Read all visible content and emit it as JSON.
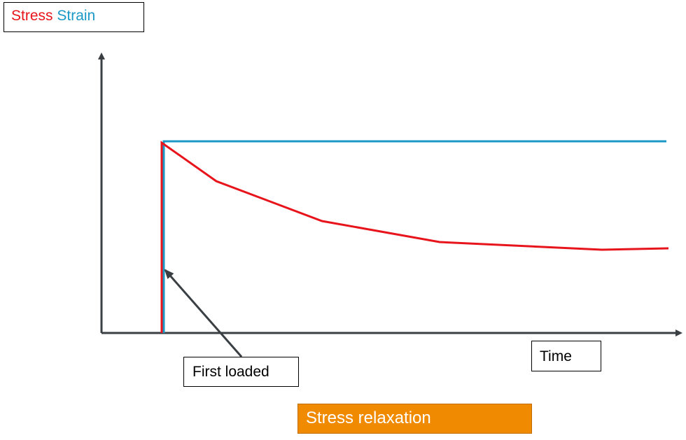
{
  "legend": {
    "stress_label": "Stress",
    "strain_label": "Strain"
  },
  "annotations": {
    "time_label": "Time",
    "first_loaded_label": "First loaded",
    "caption": "Stress relaxation"
  },
  "colors": {
    "stress": "#e8141b",
    "strain": "#1b98c6",
    "axis": "#3a3f44",
    "caption_bg": "#f08a00",
    "caption_text": "#ffffff"
  }
}
